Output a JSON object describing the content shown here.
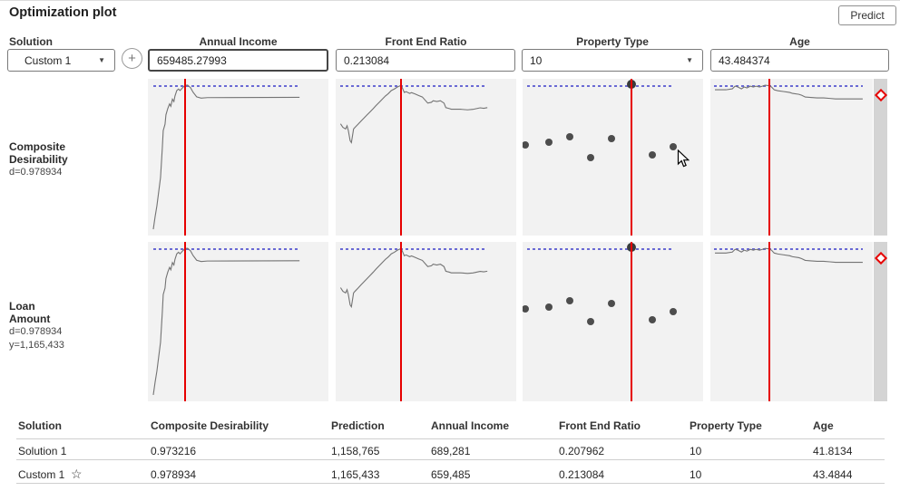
{
  "header": {
    "title": "Optimization plot",
    "predict_label": "Predict"
  },
  "controls": {
    "solution_label": "Solution",
    "solution_value": "Custom 1"
  },
  "icons": {
    "caret": "▼",
    "plus": "+",
    "star": "☆"
  },
  "factors": [
    {
      "name": "Annual Income",
      "value": "659485.27993"
    },
    {
      "name": "Front End Ratio",
      "value": "0.213084"
    },
    {
      "name": "Property Type",
      "value": "10"
    },
    {
      "name": "Age",
      "value": "43.484374"
    }
  ],
  "responses": [
    {
      "title_lines": [
        "Composite",
        "Desirability"
      ],
      "stats": [
        "d=0.978934"
      ]
    },
    {
      "title_lines": [
        "Loan",
        "Amount"
      ],
      "stats": [
        "d=0.978934",
        "y=1,165,433"
      ]
    }
  ],
  "colors": {
    "accent_red": "#e60000",
    "reference_blue": "#6a6ad4",
    "curve_gray": "#737373",
    "plot_bg": "#f2f2f2",
    "scale_track_gray": "#d4d4d4",
    "dot_gray": "#4d4d4d"
  },
  "chart_data": {
    "type": "line",
    "description": "Desirability profile plots; two identical response rows (Composite Desirability, Loan Amount) by four factors; coordinates are percent of each panel (y=0 top)",
    "rows": [
      "Composite Desirability",
      "Loan Amount"
    ],
    "dotted_reference_y_pct": 4,
    "columns": [
      {
        "factor": "Annual Income",
        "kind": "line",
        "red_line_x_pct": 20.6,
        "dotted_span_pct": [
          3,
          84
        ],
        "curve_pct": [
          [
            3,
            96
          ],
          [
            4,
            88
          ],
          [
            5,
            81
          ],
          [
            6,
            72
          ],
          [
            7,
            63
          ],
          [
            8,
            44
          ],
          [
            8.5,
            33
          ],
          [
            9.5,
            29
          ],
          [
            10,
            23
          ],
          [
            11,
            19
          ],
          [
            12,
            16
          ],
          [
            12.7,
            17.5
          ],
          [
            13.6,
            13
          ],
          [
            14.4,
            14.5
          ],
          [
            15,
            11
          ],
          [
            16,
            7.5
          ],
          [
            17,
            6.5
          ],
          [
            17.8,
            7.5
          ],
          [
            19.4,
            5.5
          ],
          [
            20.6,
            4.2
          ],
          [
            22,
            4
          ],
          [
            23.6,
            5.6
          ],
          [
            25,
            8.5
          ],
          [
            27,
            11.5
          ],
          [
            29.5,
            12.3
          ],
          [
            33,
            12
          ],
          [
            84,
            11.8
          ]
        ]
      },
      {
        "factor": "Front End Ratio",
        "kind": "line",
        "red_line_x_pct": 36.2,
        "dotted_span_pct": [
          2.5,
          84
        ],
        "curve_pct": [
          [
            2.7,
            28.7
          ],
          [
            4,
            31
          ],
          [
            5.5,
            32
          ],
          [
            6.3,
            30
          ],
          [
            7,
            33
          ],
          [
            8,
            39.5
          ],
          [
            8.7,
            40.7
          ],
          [
            9.5,
            35
          ],
          [
            9.9,
            32
          ],
          [
            10.7,
            31
          ],
          [
            12.4,
            29
          ],
          [
            14,
            27
          ],
          [
            15.7,
            25
          ],
          [
            17.4,
            23
          ],
          [
            19.1,
            21
          ],
          [
            20.8,
            19
          ],
          [
            22.4,
            17
          ],
          [
            24.1,
            15
          ],
          [
            25.8,
            13
          ],
          [
            27.5,
            11
          ],
          [
            29.1,
            9.5
          ],
          [
            30.8,
            7.5
          ],
          [
            32.5,
            6.5
          ],
          [
            34.2,
            5.2
          ],
          [
            36.2,
            4.2
          ],
          [
            37,
            6
          ],
          [
            38,
            8.7
          ],
          [
            39,
            8.2
          ],
          [
            41,
            9.3
          ],
          [
            42,
            8.8
          ],
          [
            44,
            9.7
          ],
          [
            46,
            10.7
          ],
          [
            48,
            11.6
          ],
          [
            51,
            15.5
          ],
          [
            53,
            15
          ],
          [
            54,
            14
          ],
          [
            56,
            14.5
          ],
          [
            58,
            14
          ],
          [
            60,
            15.5
          ],
          [
            61,
            18.4
          ],
          [
            63,
            19
          ],
          [
            64,
            19.4
          ],
          [
            69,
            19.4
          ],
          [
            73,
            19.8
          ],
          [
            76,
            19.5
          ],
          [
            78,
            19
          ],
          [
            80,
            18.5
          ],
          [
            82,
            18.8
          ],
          [
            84,
            18.4
          ]
        ]
      },
      {
        "factor": "Property Type",
        "kind": "scatter",
        "red_line_x_pct": 60.3,
        "dotted_span_pct": [
          2.5,
          84
        ],
        "dots_pct": [
          [
            1.5,
            42
          ],
          [
            14.6,
            40.7
          ],
          [
            26,
            37
          ],
          [
            37.7,
            50
          ],
          [
            49,
            38.4
          ],
          [
            72,
            48.8
          ],
          [
            83.4,
            43.6
          ]
        ],
        "selected_dot_pct": [
          60.3,
          3.5
        ]
      },
      {
        "factor": "Age",
        "kind": "line",
        "red_line_x_pct": 36.3,
        "dotted_span_pct": [
          2.5,
          94
        ],
        "curve_pct": [
          [
            2.8,
            7
          ],
          [
            5.6,
            7
          ],
          [
            9.6,
            7
          ],
          [
            13.5,
            6.4
          ],
          [
            15.2,
            4.7
          ],
          [
            16.9,
            5.2
          ],
          [
            19.1,
            6.4
          ],
          [
            20.8,
            5.2
          ],
          [
            22.5,
            5.8
          ],
          [
            24.7,
            4.7
          ],
          [
            26.4,
            5.2
          ],
          [
            28.1,
            4.7
          ],
          [
            30.3,
            5.2
          ],
          [
            32,
            4.7
          ],
          [
            33.7,
            4.1
          ],
          [
            36.3,
            4.4
          ],
          [
            37.6,
            5.2
          ],
          [
            39.3,
            7
          ],
          [
            41.6,
            7.6
          ],
          [
            44.9,
            8.1
          ],
          [
            48.9,
            8.7
          ],
          [
            50.6,
            9.3
          ],
          [
            54.5,
            9.9
          ],
          [
            56.2,
            10.5
          ],
          [
            58.4,
            11.6
          ],
          [
            61.8,
            11.9
          ],
          [
            65.7,
            12.2
          ],
          [
            69.7,
            12.2
          ],
          [
            73.6,
            12.5
          ],
          [
            77,
            12.8
          ],
          [
            80.9,
            12.8
          ],
          [
            84.8,
            12.8
          ],
          [
            88.8,
            12.8
          ],
          [
            93.8,
            12.8
          ]
        ]
      }
    ]
  },
  "table": {
    "columns": [
      "Solution",
      "Composite Desirability",
      "Prediction",
      "Annual Income",
      "Front End Ratio",
      "Property Type",
      "Age"
    ],
    "rows": [
      {
        "solution": "Solution 1",
        "starred": false,
        "values": [
          "0.973216",
          "1,158,765",
          "689,281",
          "0.207962",
          "10",
          "41.8134"
        ]
      },
      {
        "solution": "Custom 1",
        "starred": true,
        "values": [
          "0.978934",
          "1,165,433",
          "659,485",
          "0.213084",
          "10",
          "43.4844"
        ]
      }
    ]
  }
}
